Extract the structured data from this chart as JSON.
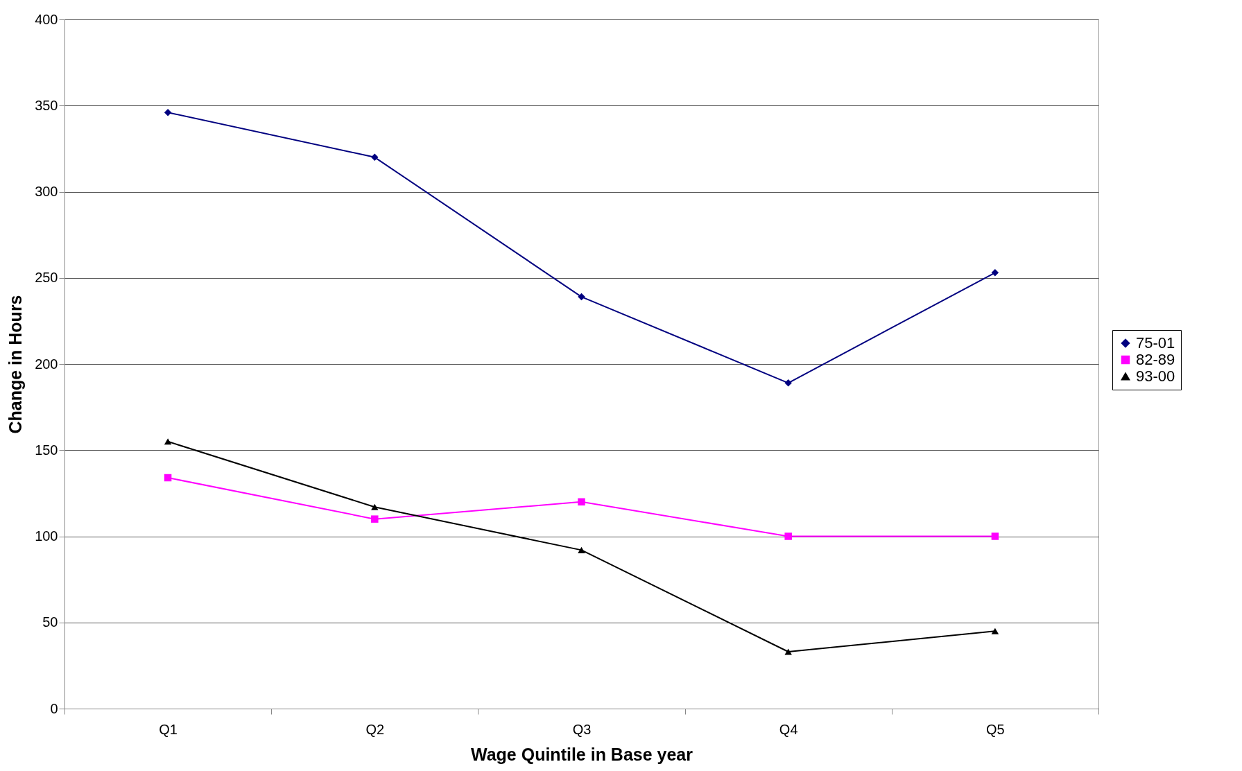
{
  "chart_data": {
    "type": "line",
    "xlabel": "Wage Quintile in Base year",
    "ylabel": "Change in Hours",
    "categories": [
      "Q1",
      "Q2",
      "Q3",
      "Q4",
      "Q5"
    ],
    "series": [
      {
        "name": "75-01",
        "color": "#000080",
        "marker": "diamond",
        "values": [
          346,
          320,
          239,
          189,
          253
        ]
      },
      {
        "name": "82-89",
        "color": "#ff00ff",
        "marker": "square",
        "values": [
          134,
          110,
          120,
          100,
          100
        ]
      },
      {
        "name": "93-00",
        "color": "#000000",
        "marker": "triangle",
        "values": [
          155,
          117,
          92,
          33,
          45
        ]
      }
    ],
    "ylim": [
      0,
      400
    ],
    "yticks": [
      0,
      50,
      100,
      150,
      200,
      250,
      300,
      350,
      400
    ],
    "grid": "y",
    "legend": "right"
  }
}
